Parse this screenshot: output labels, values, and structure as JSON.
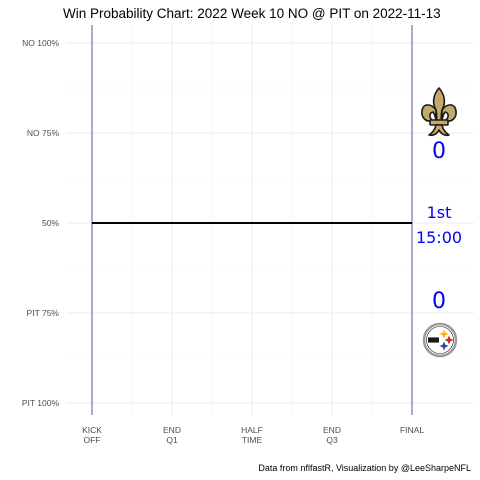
{
  "chart_data": {
    "type": "line",
    "title": "Win Probability Chart: 2022 Week 10 NO @ PIT on 2022-11-13",
    "caption": "Data from nflfastR, Visualization by @LeeSharpeNFL",
    "x_ticks": [
      {
        "value": 0,
        "line1": "KICK",
        "line2": "OFF"
      },
      {
        "value": 900,
        "line1": "END",
        "line2": "Q1"
      },
      {
        "value": 1800,
        "line1": "HALF",
        "line2": "TIME"
      },
      {
        "value": 2700,
        "line1": "END",
        "line2": "Q3"
      },
      {
        "value": 3600,
        "line1": "FINAL",
        "line2": ""
      }
    ],
    "xlim": [
      0,
      3600
    ],
    "y_ticks": [
      {
        "value": 1.0,
        "label": "NO 100%"
      },
      {
        "value": 0.75,
        "label": "NO 75%"
      },
      {
        "value": 0.5,
        "label": "50%"
      },
      {
        "value": 0.25,
        "label": "PIT 75%"
      },
      {
        "value": 0.0,
        "label": "PIT 100%"
      }
    ],
    "ylim": [
      0,
      1
    ],
    "grid": true,
    "series": [
      {
        "x": [
          0,
          3600
        ],
        "y": [
          0.5,
          0.5
        ],
        "color": "#000000"
      }
    ],
    "game_state": {
      "away_team": "NO",
      "home_team": "PIT",
      "away_score": "0",
      "home_score": "0",
      "quarter": "1st",
      "clock": "15:00",
      "text_color": "#0000ff"
    },
    "colors": {
      "away_logo": "#c6a96a",
      "home_logo_stars": [
        "#ffb612",
        "#cf2a2a",
        "#1f4ea8"
      ]
    },
    "icons": [
      "saints-fleur-de-lis-logo",
      "steelers-logo"
    ]
  }
}
